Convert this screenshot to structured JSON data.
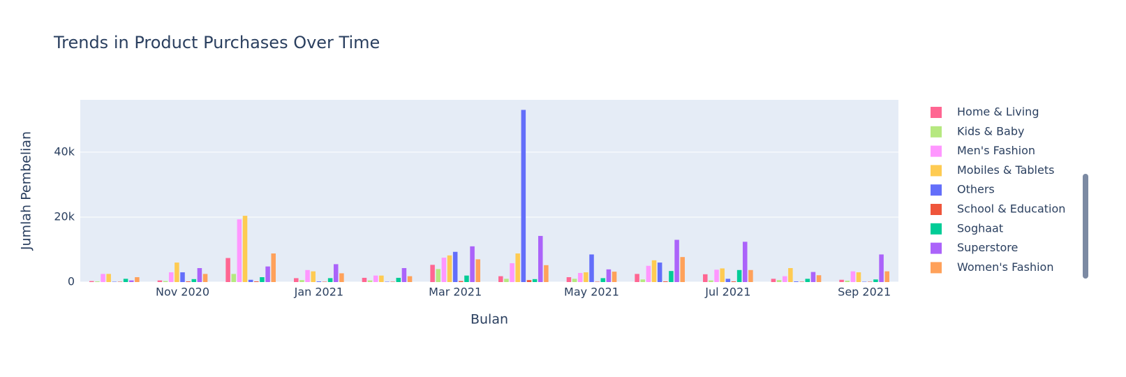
{
  "chart_data": {
    "type": "bar",
    "title": "Trends in Product Purchases Over Time",
    "x_label": "Bulan",
    "y_label": "Jumlah Pembelian",
    "categories": [
      null,
      "Nov 2020",
      null,
      "Jan 2021",
      null,
      "Mar 2021",
      null,
      "May 2021",
      null,
      "Jul 2021",
      null,
      "Sep 2021"
    ],
    "series": [
      {
        "name": "Home & Living",
        "color": "#FF6692",
        "values": [
          300,
          500,
          7400,
          1200,
          1300,
          5300,
          1800,
          1500,
          2500,
          2400,
          1000,
          700
        ]
      },
      {
        "name": "Kids & Baby",
        "color": "#B6E880",
        "values": [
          200,
          300,
          2500,
          600,
          500,
          4000,
          1000,
          1000,
          800,
          500,
          600,
          400
        ]
      },
      {
        "name": "Men's Fashion",
        "color": "#FF97FF",
        "values": [
          2500,
          3000,
          19300,
          3700,
          2000,
          7500,
          5800,
          2800,
          5000,
          3800,
          1800,
          3300
        ]
      },
      {
        "name": "Mobiles & Tablets",
        "color": "#FECB52",
        "values": [
          2500,
          6000,
          20400,
          3300,
          2000,
          8200,
          8800,
          3000,
          6700,
          4200,
          4300,
          3000
        ]
      },
      {
        "name": "Others",
        "color": "#636efa",
        "values": [
          100,
          3000,
          700,
          200,
          100,
          9300,
          53000,
          8500,
          6000,
          1000,
          200,
          100
        ]
      },
      {
        "name": "School & Education",
        "color": "#EF553B",
        "values": [
          100,
          200,
          200,
          100,
          100,
          300,
          600,
          100,
          200,
          200,
          100,
          100
        ]
      },
      {
        "name": "Soghaat",
        "color": "#00cc96",
        "values": [
          1000,
          900,
          1500,
          1200,
          1300,
          2000,
          900,
          1200,
          3400,
          3700,
          1000,
          800
        ]
      },
      {
        "name": "Superstore",
        "color": "#ab63fa",
        "values": [
          500,
          4300,
          4800,
          5500,
          4300,
          11000,
          14200,
          3900,
          13000,
          12400,
          3100,
          8500
        ]
      },
      {
        "name": "Women's Fashion",
        "color": "#FFA15A",
        "values": [
          1500,
          2500,
          8800,
          2700,
          1800,
          7000,
          5200,
          3200,
          7700,
          3700,
          2100,
          3300
        ]
      }
    ],
    "ylim": [
      0,
      56100
    ],
    "yticks": [
      0,
      {
        "value": 20000,
        "label": "20k"
      },
      {
        "value": 40000,
        "label": "40k"
      }
    ],
    "grid": true,
    "legend": "right"
  }
}
